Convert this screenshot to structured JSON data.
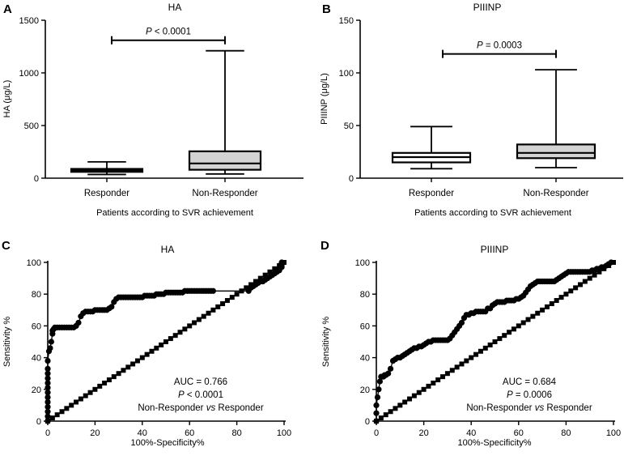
{
  "figure": {
    "panels": [
      "A",
      "B",
      "C",
      "D"
    ]
  },
  "chart_data": [
    {
      "panel": "A",
      "type": "box",
      "title": "HA",
      "ylabel": "HA (μg/L)",
      "xlabel": "Patients according to SVR achievement",
      "ylim": [
        0,
        1500
      ],
      "yticks": [
        0,
        500,
        1000,
        1500
      ],
      "categories": [
        "Responder",
        "Non-Responder"
      ],
      "boxes": [
        {
          "name": "Responder",
          "min": 35,
          "q1": 60,
          "median": 72,
          "q3": 88,
          "max": 155,
          "fill": "#ffffff"
        },
        {
          "name": "Non-Responder",
          "min": 40,
          "q1": 80,
          "median": 140,
          "q3": 255,
          "max": 1210,
          "fill": "#d3d3d3"
        }
      ],
      "annotation": {
        "prefix": "P",
        "text": " < 0.0001",
        "y": 1310
      }
    },
    {
      "panel": "B",
      "type": "box",
      "title": "PIIINP",
      "ylabel": "PIIINP (μg/L)",
      "xlabel": "Patients according to SVR achievement",
      "ylim": [
        0,
        150
      ],
      "yticks": [
        0,
        50,
        100,
        150
      ],
      "categories": [
        "Responder",
        "Non-Responder"
      ],
      "boxes": [
        {
          "name": "Responder",
          "min": 9,
          "q1": 15,
          "median": 20,
          "q3": 24,
          "max": 49,
          "fill": "#ffffff"
        },
        {
          "name": "Non-Responder",
          "min": 10,
          "q1": 19,
          "median": 24,
          "q3": 32,
          "max": 103,
          "fill": "#d3d3d3"
        }
      ],
      "annotation": {
        "prefix": "P",
        "text": " = 0.0003",
        "y": 118
      }
    },
    {
      "panel": "C",
      "type": "line",
      "title": "HA",
      "xlabel": "100%-Specificity%",
      "ylabel": "Sensitivity %",
      "xlim": [
        0,
        100
      ],
      "ylim": [
        0,
        100
      ],
      "xticks": [
        0,
        20,
        40,
        60,
        80,
        100
      ],
      "yticks": [
        0,
        20,
        40,
        60,
        80,
        100
      ],
      "series": [
        {
          "name": "ROC",
          "marker": "circle",
          "x": [
            0,
            0,
            0,
            0,
            0,
            0,
            0,
            0,
            0,
            0,
            0,
            0,
            0,
            0.5,
            1,
            1.5,
            2,
            2,
            2.5,
            3,
            4,
            5,
            6,
            7,
            8,
            9,
            10,
            11,
            12,
            13,
            14,
            15,
            16,
            17,
            18,
            19,
            20,
            21,
            22,
            23,
            24,
            25,
            26,
            27,
            28,
            29,
            30,
            31,
            32,
            33,
            34,
            35,
            36,
            37,
            38,
            39,
            40,
            41,
            42,
            43,
            44,
            45,
            46,
            47,
            48,
            49,
            50,
            51,
            52,
            53,
            54,
            55,
            56,
            57,
            58,
            59,
            60,
            61,
            62,
            63,
            64,
            65,
            66,
            67,
            68,
            69,
            70,
            85,
            86,
            87,
            88,
            89,
            90,
            91,
            92,
            93,
            94,
            95,
            96,
            97,
            98,
            98,
            99,
            99,
            99,
            99
          ],
          "y": [
            0,
            3,
            6,
            9,
            12,
            15,
            18,
            21,
            24,
            27,
            30,
            33,
            38,
            44,
            46,
            50,
            55,
            57,
            58,
            59,
            59,
            59,
            59,
            59,
            59,
            59,
            59,
            59,
            60,
            62,
            66,
            68,
            69,
            69,
            69,
            69,
            70,
            70,
            70,
            70,
            70,
            70,
            71,
            72,
            75,
            77,
            78,
            78,
            78,
            78,
            78,
            78,
            78,
            78,
            78,
            78,
            78,
            79,
            79,
            79,
            79,
            79,
            80,
            80,
            80,
            80,
            81,
            81,
            81,
            81,
            81,
            81,
            81,
            81,
            82,
            82,
            82,
            82,
            82,
            82,
            82,
            82,
            82,
            82,
            82,
            82,
            82,
            82,
            84,
            85,
            86,
            87,
            88,
            88,
            89,
            90,
            91,
            92,
            93,
            94,
            95,
            96,
            97,
            98,
            99,
            100
          ]
        },
        {
          "name": "Reference",
          "marker": "square",
          "x": [
            0,
            2,
            4,
            6,
            8,
            10,
            12,
            14,
            16,
            18,
            20,
            22,
            24,
            26,
            28,
            30,
            32,
            34,
            36,
            38,
            40,
            42,
            44,
            46,
            48,
            50,
            52,
            54,
            56,
            58,
            60,
            62,
            64,
            66,
            68,
            70,
            72,
            74,
            76,
            78,
            80,
            82,
            84,
            86,
            88,
            90,
            92,
            94,
            96,
            98,
            100
          ],
          "y": [
            0,
            2,
            4,
            6,
            8,
            10,
            12,
            14,
            16,
            18,
            20,
            22,
            24,
            26,
            28,
            30,
            32,
            34,
            36,
            38,
            40,
            42,
            44,
            46,
            48,
            50,
            52,
            54,
            56,
            58,
            60,
            62,
            64,
            66,
            68,
            70,
            72,
            74,
            76,
            78,
            80,
            82,
            84,
            86,
            88,
            90,
            92,
            94,
            96,
            98,
            100
          ]
        }
      ],
      "annotation": {
        "line1": "AUC = 0.766",
        "line2_prefix": "P",
        "line2_text": " < 0.0001",
        "line3_a": "Non-Responder ",
        "line3_b": "vs",
        "line3_c": " Responder"
      }
    },
    {
      "panel": "D",
      "type": "line",
      "title": "PIIINP",
      "xlabel": "100%-Specificity%",
      "ylabel": "Sensitivity %",
      "xlim": [
        0,
        100
      ],
      "ylim": [
        0,
        100
      ],
      "xticks": [
        0,
        20,
        40,
        60,
        80,
        100
      ],
      "yticks": [
        0,
        20,
        40,
        60,
        80,
        100
      ],
      "series": [
        {
          "name": "ROC",
          "marker": "circle",
          "x": [
            0,
            0,
            0,
            0.5,
            1,
            1.5,
            2,
            2.5,
            3,
            3.5,
            4,
            5,
            6,
            7,
            8,
            9,
            10,
            11,
            12,
            13,
            14,
            15,
            16,
            17,
            18,
            19,
            20,
            21,
            22,
            23,
            24,
            25,
            26,
            27,
            28,
            29,
            30,
            31,
            32,
            33,
            34,
            35,
            36,
            37,
            38,
            39,
            40,
            41,
            42,
            43,
            44,
            45,
            46,
            47,
            48,
            49,
            50,
            51,
            52,
            53,
            54,
            55,
            56,
            57,
            58,
            59,
            60,
            61,
            62,
            63,
            64,
            65,
            66,
            67,
            68,
            69,
            70,
            71,
            72,
            73,
            74,
            75,
            76,
            77,
            78,
            79,
            80,
            81,
            82,
            83,
            84,
            85,
            86,
            87,
            88,
            89,
            90,
            91,
            92,
            93,
            94,
            95,
            96,
            97,
            98,
            99
          ],
          "y": [
            0,
            5,
            10,
            15,
            20,
            25,
            28,
            28,
            28,
            29,
            29,
            30,
            33,
            38,
            39,
            40,
            40,
            41,
            42,
            43,
            44,
            45,
            46,
            46,
            47,
            47,
            48,
            49,
            50,
            50,
            51,
            51,
            51,
            51,
            51,
            51,
            51,
            52,
            54,
            56,
            58,
            60,
            62,
            65,
            67,
            67,
            68,
            68,
            69,
            69,
            69,
            69,
            69,
            71,
            71,
            73,
            74,
            75,
            75,
            75,
            75,
            76,
            76,
            76,
            76,
            77,
            77,
            78,
            79,
            81,
            83,
            85,
            86,
            87,
            88,
            88,
            88,
            88,
            88,
            88,
            88,
            88,
            89,
            90,
            91,
            92,
            93,
            94,
            94,
            94,
            94,
            94,
            94,
            94,
            94,
            94,
            94,
            95,
            95,
            96,
            96,
            97,
            97,
            98,
            99,
            100
          ]
        },
        {
          "name": "Reference",
          "marker": "square",
          "x": [
            0,
            2,
            4,
            6,
            8,
            10,
            12,
            14,
            16,
            18,
            20,
            22,
            24,
            26,
            28,
            30,
            32,
            34,
            36,
            38,
            40,
            42,
            44,
            46,
            48,
            50,
            52,
            54,
            56,
            58,
            60,
            62,
            64,
            66,
            68,
            70,
            72,
            74,
            76,
            78,
            80,
            82,
            84,
            86,
            88,
            90,
            92,
            94,
            96,
            98,
            100
          ],
          "y": [
            0,
            2,
            4,
            6,
            8,
            10,
            12,
            14,
            16,
            18,
            20,
            22,
            24,
            26,
            28,
            30,
            32,
            34,
            36,
            38,
            40,
            42,
            44,
            46,
            48,
            50,
            52,
            54,
            56,
            58,
            60,
            62,
            64,
            66,
            68,
            70,
            72,
            74,
            76,
            78,
            80,
            82,
            84,
            86,
            88,
            90,
            92,
            94,
            96,
            98,
            100
          ]
        }
      ],
      "annotation": {
        "line1": "AUC = 0.684",
        "line2_prefix": "P",
        "line2_text": " = 0.0006",
        "line3_a": "Non-Responder ",
        "line3_b": "vs",
        "line3_c": " Responder"
      }
    }
  ]
}
